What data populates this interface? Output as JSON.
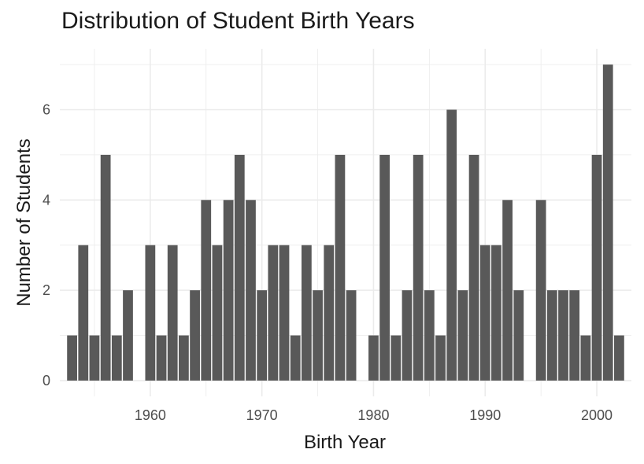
{
  "chart_data": {
    "type": "bar",
    "title": "Distribution of Student Birth Years",
    "xlabel": "Birth Year",
    "ylabel": "Number of Students",
    "x": [
      1953,
      1954,
      1955,
      1956,
      1957,
      1958,
      1960,
      1961,
      1962,
      1963,
      1964,
      1965,
      1966,
      1967,
      1968,
      1969,
      1970,
      1971,
      1972,
      1973,
      1974,
      1975,
      1976,
      1977,
      1978,
      1980,
      1981,
      1982,
      1983,
      1984,
      1985,
      1986,
      1987,
      1988,
      1989,
      1990,
      1991,
      1992,
      1993,
      1995,
      1996,
      1997,
      1998,
      1999,
      2000,
      2001,
      2002
    ],
    "values": [
      1,
      3,
      1,
      5,
      1,
      2,
      3,
      1,
      3,
      1,
      2,
      4,
      3,
      4,
      5,
      4,
      2,
      3,
      3,
      1,
      3,
      2,
      3,
      5,
      2,
      1,
      5,
      1,
      2,
      5,
      2,
      1,
      6,
      2,
      5,
      3,
      3,
      4,
      2,
      4,
      2,
      2,
      2,
      1,
      5,
      7,
      1
    ],
    "x_ticks": [
      "1960",
      "1970",
      "1980",
      "1990",
      "2000"
    ],
    "y_ticks": [
      "0",
      "2",
      "4",
      "6"
    ],
    "xlim": [
      1951.9,
      2003.1
    ],
    "ylim": [
      -0.35,
      7.35
    ],
    "grid": true,
    "bar_color": "#595959",
    "grid_color": "#ebebeb"
  }
}
